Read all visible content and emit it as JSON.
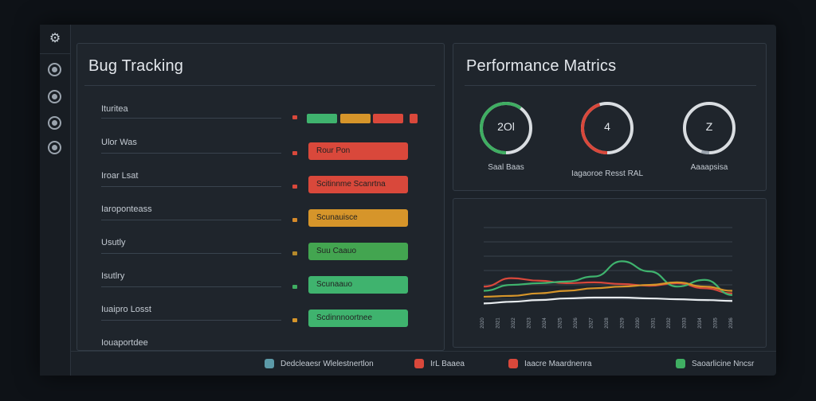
{
  "sidebar": {
    "logo_icon": "gear-logo-icon",
    "items": [
      {
        "icon": "circle-icon-1"
      },
      {
        "icon": "circle-icon-2"
      },
      {
        "icon": "circle-icon-3"
      },
      {
        "icon": "circle-icon-4"
      }
    ]
  },
  "bug_tracking": {
    "title": "Bug Tracking",
    "rows": [
      {
        "label": "Ituritea",
        "dot_color": "#d9483b"
      },
      {
        "label": "Ulor Was",
        "dot_color": "#d9483b",
        "status": "Rour Pon",
        "color": "#d9483b"
      },
      {
        "label": "Iroar Lsat",
        "dot_color": "#d9483b",
        "status": "Scitinnme Scanrtna",
        "color": "#d9483b"
      },
      {
        "label": "Iaroponteass",
        "dot_color": "#d68a2a",
        "status": "Scunauisce",
        "color": "#d6952a"
      },
      {
        "label": "Usutly",
        "dot_color": "#b5892b",
        "status": "Suu Caauo",
        "color": "#43a550"
      },
      {
        "label": "Isutlry",
        "dot_color": "#3fae62",
        "status": "Scunaauo",
        "color": "#3fb36e"
      },
      {
        "label": "Iuaipro Losst",
        "dot_color": "#d6952a",
        "status": "Scdinnnoortnee",
        "color": "#3fb36e"
      },
      {
        "label": "Iouaportdee"
      }
    ],
    "legend": [
      {
        "color": "#d9483b"
      },
      {
        "color": "#3fb36e"
      },
      {
        "color": "#d6952a"
      },
      {
        "color": "#d9483b"
      },
      {
        "color": "#d9483b"
      }
    ]
  },
  "performance": {
    "title": "Performance Matrics",
    "gauges": [
      {
        "value": "2Ol",
        "label": "Saal Baas",
        "color": "#3fae62",
        "fill": 0.6
      },
      {
        "value": "4",
        "label": "Iagaoroe Resst RAL",
        "color": "#d9483b",
        "fill": 0.45
      },
      {
        "value": "Z",
        "label": "Aaaapsisa",
        "color": "#9aa3ad",
        "fill": 0.05
      }
    ]
  },
  "line_chart": {
    "series": [
      {
        "values": [
          0.3,
          0.4,
          0.37,
          0.34,
          0.35,
          0.33,
          0.31,
          0.34,
          0.28,
          0.22
        ],
        "color": "#d9483b"
      },
      {
        "values": [
          0.25,
          0.32,
          0.34,
          0.36,
          0.42,
          0.6,
          0.48,
          0.3,
          0.38,
          0.2
        ],
        "color": "#3fb36e"
      },
      {
        "values": [
          0.18,
          0.19,
          0.22,
          0.25,
          0.28,
          0.3,
          0.32,
          0.35,
          0.3,
          0.25
        ],
        "color": "#d6952a"
      },
      {
        "values": [
          0.1,
          0.12,
          0.14,
          0.16,
          0.17,
          0.17,
          0.16,
          0.15,
          0.14,
          0.13
        ],
        "color": "#e8ecef"
      }
    ],
    "x_ticks": [
      "2020",
      "2021",
      "2022",
      "2023",
      "2024",
      "2025",
      "2026",
      "2027",
      "2028",
      "2029",
      "2030",
      "2031",
      "2032",
      "2033",
      "2034",
      "2035",
      "2036"
    ]
  },
  "statusbar": [
    {
      "label": "Dedcleaesr Wlelestnertlon",
      "color": "#5c9aa8"
    },
    {
      "label": "IrL Baaea",
      "color": "#d9483b"
    },
    {
      "label": "Iaacre Maardnenra",
      "color": "#d9483b"
    },
    {
      "label": "Saoarlicine Nncsr",
      "color": "#3fae62"
    }
  ]
}
